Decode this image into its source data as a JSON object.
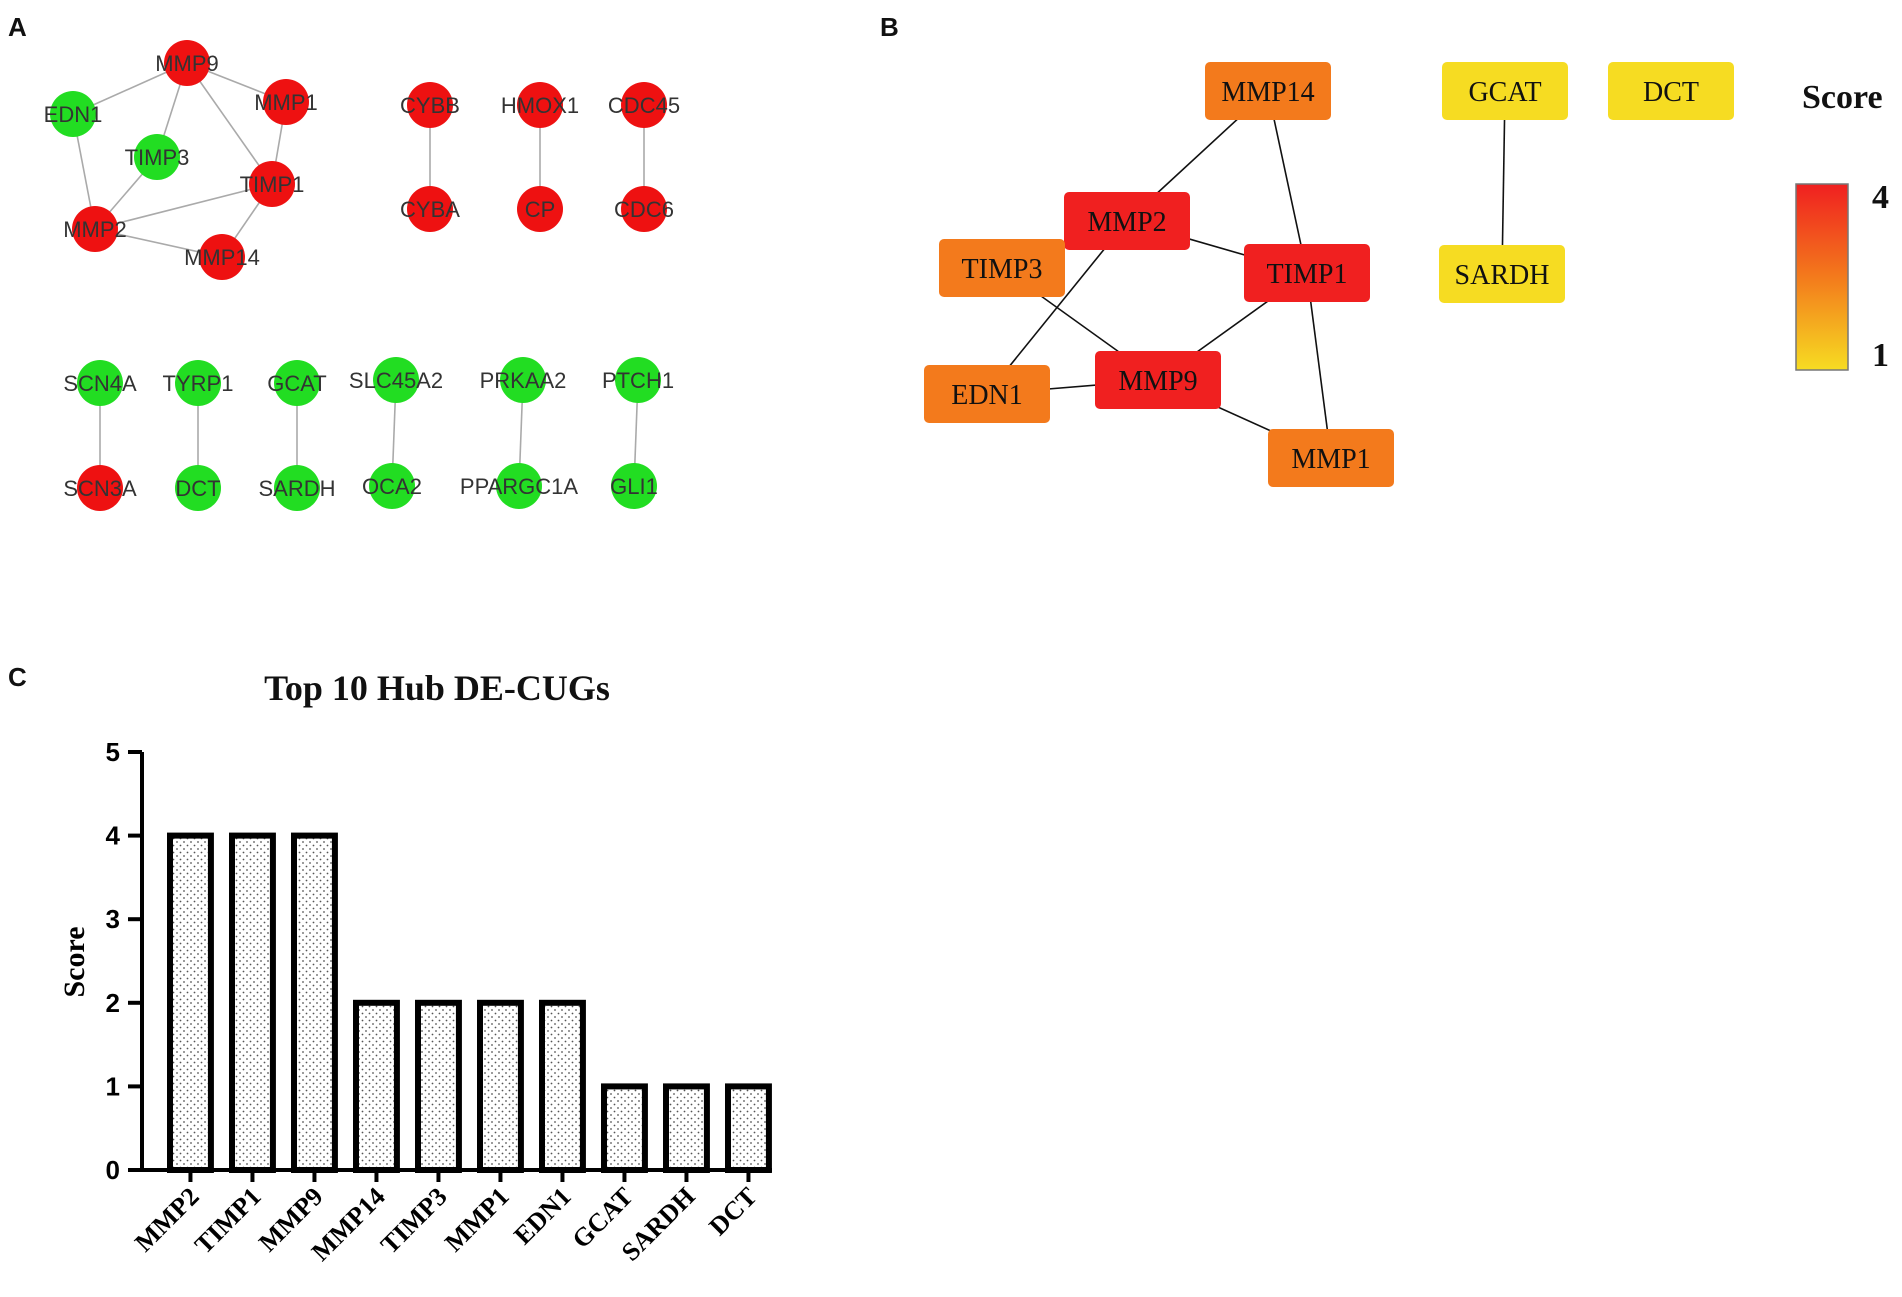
{
  "panels": {
    "a": "A",
    "b": "B",
    "c": "C"
  },
  "colors": {
    "up": "#ee1111",
    "down": "#22dd22",
    "edgeA": "#aaaaaa",
    "edgeB": "#111111",
    "scaleHigh": "#f02020",
    "scaleMid": "#f37a1c",
    "scaleLow": "#f6dc22"
  },
  "network_a": {
    "nodes": [
      {
        "id": "MMP9",
        "state": "up"
      },
      {
        "id": "MMP1",
        "state": "up"
      },
      {
        "id": "EDN1",
        "state": "down"
      },
      {
        "id": "TIMP3",
        "state": "down"
      },
      {
        "id": "TIMP1",
        "state": "up"
      },
      {
        "id": "MMP2",
        "state": "up"
      },
      {
        "id": "MMP14",
        "state": "up"
      },
      {
        "id": "CYBB",
        "state": "up"
      },
      {
        "id": "CYBA",
        "state": "up"
      },
      {
        "id": "HMOX1",
        "state": "up"
      },
      {
        "id": "CP",
        "state": "up"
      },
      {
        "id": "CDC45",
        "state": "up"
      },
      {
        "id": "CDC6",
        "state": "up"
      },
      {
        "id": "SCN4A",
        "state": "down"
      },
      {
        "id": "SCN3A",
        "state": "up"
      },
      {
        "id": "TYRP1",
        "state": "down"
      },
      {
        "id": "DCT",
        "state": "down"
      },
      {
        "id": "GCAT",
        "state": "down"
      },
      {
        "id": "SARDH",
        "state": "down"
      },
      {
        "id": "SLC45A2",
        "state": "down"
      },
      {
        "id": "OCA2",
        "state": "down"
      },
      {
        "id": "PRKAA2",
        "state": "down"
      },
      {
        "id": "PPARGC1A",
        "state": "down"
      },
      {
        "id": "PTCH1",
        "state": "down"
      },
      {
        "id": "GLI1",
        "state": "down"
      }
    ],
    "edges": [
      [
        "EDN1",
        "MMP9"
      ],
      [
        "EDN1",
        "MMP2"
      ],
      [
        "MMP9",
        "MMP1"
      ],
      [
        "MMP9",
        "TIMP3"
      ],
      [
        "MMP9",
        "TIMP1"
      ],
      [
        "MMP1",
        "TIMP1"
      ],
      [
        "TIMP3",
        "MMP2"
      ],
      [
        "TIMP1",
        "MMP2"
      ],
      [
        "TIMP1",
        "MMP14"
      ],
      [
        "MMP2",
        "MMP14"
      ],
      [
        "CYBB",
        "CYBA"
      ],
      [
        "HMOX1",
        "CP"
      ],
      [
        "CDC45",
        "CDC6"
      ],
      [
        "SCN4A",
        "SCN3A"
      ],
      [
        "TYRP1",
        "DCT"
      ],
      [
        "GCAT",
        "SARDH"
      ],
      [
        "SLC45A2",
        "OCA2"
      ],
      [
        "PRKAA2",
        "PPARGC1A"
      ],
      [
        "PTCH1",
        "GLI1"
      ]
    ]
  },
  "network_b": {
    "nodes": [
      {
        "id": "MMP14",
        "score": 2
      },
      {
        "id": "GCAT",
        "score": 1
      },
      {
        "id": "DCT",
        "score": 1
      },
      {
        "id": "MMP2",
        "score": 4
      },
      {
        "id": "TIMP3",
        "score": 2
      },
      {
        "id": "TIMP1",
        "score": 4
      },
      {
        "id": "SARDH",
        "score": 1
      },
      {
        "id": "EDN1",
        "score": 2
      },
      {
        "id": "MMP9",
        "score": 4
      },
      {
        "id": "MMP1",
        "score": 2
      }
    ],
    "edges": [
      [
        "MMP14",
        "MMP2"
      ],
      [
        "MMP14",
        "TIMP1"
      ],
      [
        "MMP2",
        "TIMP3"
      ],
      [
        "MMP2",
        "TIMP1"
      ],
      [
        "MMP2",
        "EDN1"
      ],
      [
        "TIMP3",
        "MMP9"
      ],
      [
        "TIMP1",
        "MMP9"
      ],
      [
        "TIMP1",
        "MMP1"
      ],
      [
        "EDN1",
        "MMP9"
      ],
      [
        "MMP9",
        "MMP1"
      ],
      [
        "GCAT",
        "SARDH"
      ]
    ],
    "scale": {
      "title": "Score",
      "max_label": "4",
      "min_label": "1"
    }
  },
  "chart_data": {
    "type": "bar",
    "title": "Top 10 Hub DE-CUGs",
    "xlabel": "",
    "ylabel": "Score",
    "categories": [
      "MMP2",
      "TIMP1",
      "MMP9",
      "MMP14",
      "TIMP3",
      "MMP1",
      "EDN1",
      "GCAT",
      "SARDH",
      "DCT"
    ],
    "values": [
      4,
      4,
      4,
      2,
      2,
      2,
      2,
      1,
      1,
      1
    ],
    "ylim": [
      0,
      5
    ],
    "yticks": [
      "0",
      "1",
      "2",
      "3",
      "4",
      "5"
    ],
    "grid": false
  }
}
